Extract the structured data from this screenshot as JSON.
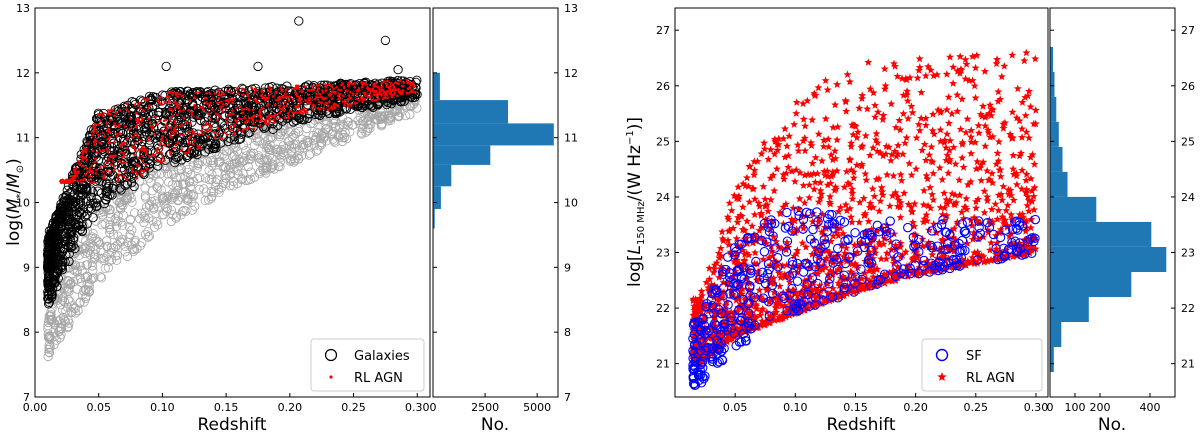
{
  "chart_data": [
    {
      "type": "scatter",
      "xlabel": "Redshift",
      "ylabel_parts": [
        "log(",
        "M",
        "*",
        "/",
        "M",
        "⊙",
        ")"
      ],
      "xlim": [
        0.0,
        0.31
      ],
      "ylim": [
        7,
        13
      ],
      "x_ticks": [
        "0.00",
        "0.05",
        "0.10",
        "0.15",
        "0.20",
        "0.25",
        "0.30"
      ],
      "y_ticks": [
        "7",
        "8",
        "9",
        "10",
        "11",
        "12",
        "13"
      ],
      "legend": {
        "position": "lower-right",
        "entries": [
          "Galaxies",
          "RL AGN"
        ]
      },
      "series": [
        {
          "name": "parent sample (not in legend)",
          "color": "#a6a6a6",
          "marker": "open-circle",
          "x_range": [
            0.01,
            0.3
          ],
          "y_lower_envelope": [
            [
              0.01,
              7.6
            ],
            [
              0.05,
              8.8
            ],
            [
              0.1,
              9.6
            ],
            [
              0.15,
              10.2
            ],
            [
              0.2,
              10.6
            ],
            [
              0.25,
              11.0
            ],
            [
              0.3,
              11.4
            ]
          ]
        },
        {
          "name": "Galaxies",
          "color": "#000000",
          "marker": "open-circle",
          "x_range": [
            0.01,
            0.3
          ],
          "y_lower_envelope": [
            [
              0.01,
              8.4
            ],
            [
              0.03,
              9.2
            ],
            [
              0.05,
              9.9
            ],
            [
              0.1,
              10.5
            ],
            [
              0.15,
              10.9
            ],
            [
              0.2,
              11.2
            ],
            [
              0.25,
              11.4
            ],
            [
              0.3,
              11.6
            ]
          ],
          "y_upper_envelope": [
            [
              0.01,
              9.5
            ],
            [
              0.05,
              11.4
            ],
            [
              0.1,
              11.7
            ],
            [
              0.2,
              11.8
            ],
            [
              0.3,
              11.9
            ]
          ],
          "outliers": [
            [
              0.207,
              12.8
            ],
            [
              0.275,
              12.5
            ],
            [
              0.103,
              12.1
            ],
            [
              0.175,
              12.1
            ],
            [
              0.285,
              12.05
            ]
          ]
        },
        {
          "name": "RL AGN",
          "color": "#ff0000",
          "marker": "dot",
          "x_range": [
            0.02,
            0.3
          ],
          "y_range": [
            10.3,
            12.0
          ]
        }
      ]
    },
    {
      "type": "bar",
      "orientation": "horizontal",
      "xlabel": "No.",
      "x_ticks": [
        "0",
        "2500",
        "5000"
      ],
      "xlim": [
        0,
        6000
      ],
      "y_ticks": [
        "7",
        "8",
        "9",
        "10",
        "11",
        "12",
        "13"
      ],
      "ylim": [
        7,
        13
      ],
      "color": "#1f77b4",
      "bins": [
        {
          "y0": 9.6,
          "y1": 9.9,
          "count": 80
        },
        {
          "y0": 9.9,
          "y1": 10.25,
          "count": 380
        },
        {
          "y0": 10.25,
          "y1": 10.58,
          "count": 880
        },
        {
          "y0": 10.58,
          "y1": 10.88,
          "count": 2750
        },
        {
          "y0": 10.88,
          "y1": 11.22,
          "count": 5800
        },
        {
          "y0": 11.22,
          "y1": 11.58,
          "count": 3600
        },
        {
          "y0": 11.58,
          "y1": 12.0,
          "count": 330
        }
      ]
    },
    {
      "type": "scatter",
      "xlabel": "Redshift",
      "ylabel_parts": [
        "log[",
        "L",
        "150 MHz",
        "/(W Hz",
        "−1",
        ")]"
      ],
      "xlim": [
        0.0,
        0.31
      ],
      "ylim": [
        20.4,
        27.4
      ],
      "x_ticks": [
        "0.05",
        "0.10",
        "0.15",
        "0.20",
        "0.25",
        "0.30"
      ],
      "y_ticks": [
        "21",
        "22",
        "23",
        "24",
        "25",
        "26",
        "27"
      ],
      "legend": {
        "position": "lower-right",
        "entries": [
          "SF",
          "RL AGN"
        ]
      },
      "series": [
        {
          "name": "SF",
          "color": "#0000ff",
          "marker": "open-circle",
          "x_range": [
            0.015,
            0.3
          ],
          "y_lower_envelope": [
            [
              0.02,
              20.6
            ],
            [
              0.05,
              21.3
            ],
            [
              0.1,
              21.9
            ],
            [
              0.15,
              22.3
            ],
            [
              0.2,
              22.6
            ],
            [
              0.3,
              23.0
            ]
          ],
          "y_upper_envelope": [
            [
              0.02,
              21.8
            ],
            [
              0.05,
              23.3
            ],
            [
              0.1,
              23.9
            ],
            [
              0.15,
              23.6
            ],
            [
              0.3,
              23.6
            ]
          ]
        },
        {
          "name": "RL AGN",
          "color": "#ff0000",
          "marker": "star",
          "x_range": [
            0.015,
            0.3
          ],
          "y_lower_envelope": [
            [
              0.02,
              21.0
            ],
            [
              0.05,
              21.5
            ],
            [
              0.1,
              21.9
            ],
            [
              0.15,
              22.3
            ],
            [
              0.2,
              22.6
            ],
            [
              0.3,
              23.0
            ]
          ],
          "y_upper_envelope": [
            [
              0.02,
              22.2
            ],
            [
              0.05,
              24.2
            ],
            [
              0.1,
              25.8
            ],
            [
              0.15,
              26.4
            ],
            [
              0.2,
              26.6
            ],
            [
              0.3,
              26.6
            ]
          ]
        }
      ]
    },
    {
      "type": "bar",
      "orientation": "horizontal",
      "xlabel": "No.",
      "x_ticks": [
        "0",
        "100",
        "200",
        "400"
      ],
      "xlim": [
        0,
        500
      ],
      "y_ticks": [
        "21",
        "22",
        "23",
        "24",
        "25",
        "26",
        "27"
      ],
      "ylim": [
        20.4,
        27.4
      ],
      "color": "#1f77b4",
      "bins": [
        {
          "y0": 20.85,
          "y1": 21.3,
          "count": 15
        },
        {
          "y0": 21.3,
          "y1": 21.75,
          "count": 45
        },
        {
          "y0": 21.75,
          "y1": 22.2,
          "count": 155
        },
        {
          "y0": 22.2,
          "y1": 22.65,
          "count": 325
        },
        {
          "y0": 22.65,
          "y1": 23.1,
          "count": 465
        },
        {
          "y0": 23.1,
          "y1": 23.55,
          "count": 405
        },
        {
          "y0": 23.55,
          "y1": 24.0,
          "count": 185
        },
        {
          "y0": 24.0,
          "y1": 24.45,
          "count": 70
        },
        {
          "y0": 24.45,
          "y1": 24.9,
          "count": 50
        },
        {
          "y0": 24.9,
          "y1": 25.35,
          "count": 35
        },
        {
          "y0": 25.35,
          "y1": 25.8,
          "count": 25
        },
        {
          "y0": 25.8,
          "y1": 26.25,
          "count": 18
        },
        {
          "y0": 26.25,
          "y1": 26.7,
          "count": 12
        }
      ]
    }
  ]
}
